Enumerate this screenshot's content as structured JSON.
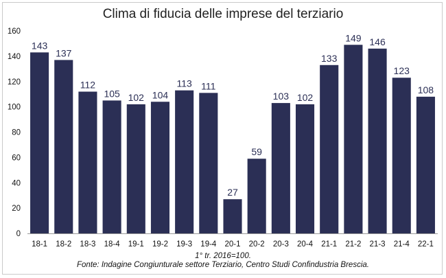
{
  "colors": {
    "bar": "#2b2f55",
    "axis": "#999999"
  },
  "footnotes": {
    "base": "1° tr. 2016=100.",
    "source": "Fonte: Indagine Congiunturale settore Terziario, Centro Studi Confindustria Brescia."
  },
  "chart_data": {
    "type": "bar",
    "title": "Clima di fiducia delle imprese del terziario",
    "xlabel": "",
    "ylabel": "",
    "ylim": [
      0,
      160
    ],
    "yticks": [
      0,
      20,
      40,
      60,
      80,
      100,
      120,
      140,
      160
    ],
    "grid": false,
    "categories": [
      "18-1",
      "18-2",
      "18-3",
      "18-4",
      "19-1",
      "19-2",
      "19-3",
      "19-4",
      "20-1",
      "20-2",
      "20-3",
      "20-4",
      "21-1",
      "21-2",
      "21-3",
      "21-4",
      "22-1"
    ],
    "values": [
      143,
      137,
      112,
      105,
      102,
      104,
      113,
      111,
      27,
      59,
      103,
      102,
      133,
      149,
      146,
      123,
      108
    ]
  }
}
